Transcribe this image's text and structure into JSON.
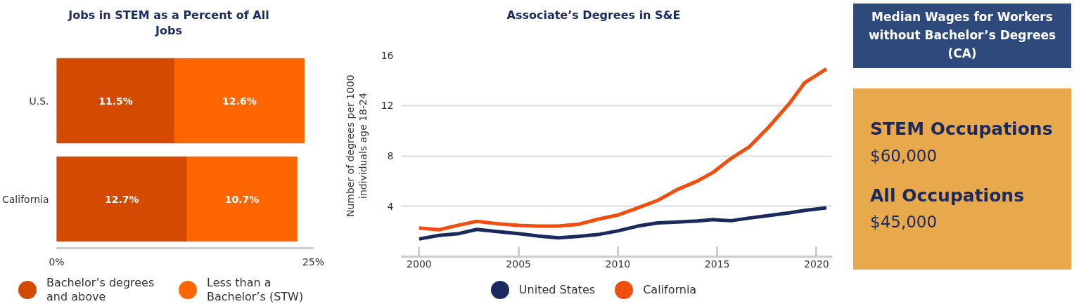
{
  "chart_data": [
    {
      "type": "bar",
      "orientation": "horizontal",
      "stacked": true,
      "title": "Jobs in STEM as a Percent of All Jobs",
      "categories": [
        "U.S.",
        "California"
      ],
      "series": [
        {
          "name": "Bachelor’s degrees and above",
          "color": "#d44a00",
          "values": [
            11.5,
            12.7
          ],
          "value_labels": [
            "11.5%",
            "12.7%"
          ]
        },
        {
          "name": "Less than a Bachelor’s (STW)",
          "color": "#ff6600",
          "values": [
            12.6,
            10.7
          ],
          "value_labels": [
            "12.6%",
            "10.7%"
          ]
        }
      ],
      "xlim": [
        0,
        25
      ],
      "xticks": [
        {
          "value": 0,
          "label": "0%"
        },
        {
          "value": 25,
          "label": "25%"
        }
      ],
      "grid": false,
      "legend": "bottom"
    },
    {
      "type": "line",
      "title": "Associate’s Degrees in S&E",
      "ylabel": "Number of degrees per 1000 individuals age 18-24",
      "series": [
        {
          "name": "United States",
          "color": "#1b2a5e",
          "x": [
            2000,
            2001,
            2002,
            2002.9,
            2004,
            2005,
            2006,
            2007,
            2008,
            2009,
            2010,
            2011,
            2012,
            2013,
            2014,
            2014.8,
            2015.7,
            2016.6,
            2017.6,
            2018.6,
            2019.4,
            2020.5
          ],
          "values": [
            1.4,
            1.69,
            1.83,
            2.16,
            1.98,
            1.83,
            1.63,
            1.49,
            1.6,
            1.75,
            2.04,
            2.42,
            2.68,
            2.74,
            2.83,
            2.94,
            2.85,
            3.06,
            3.26,
            3.47,
            3.67,
            3.87
          ]
        },
        {
          "name": "California",
          "color": "#f04e0f",
          "x": [
            2000,
            2001,
            2002,
            2002.9,
            2004,
            2005,
            2006,
            2007,
            2008,
            2009,
            2010,
            2011,
            2012,
            2013,
            2014,
            2014.8,
            2015.7,
            2016.6,
            2017.6,
            2018.6,
            2019.4,
            2020.5
          ],
          "values": [
            2.27,
            2.13,
            2.5,
            2.8,
            2.6,
            2.48,
            2.42,
            2.42,
            2.56,
            2.97,
            3.3,
            3.87,
            4.46,
            5.33,
            6.0,
            6.7,
            7.8,
            8.7,
            10.3,
            12.1,
            13.8,
            14.9
          ]
        }
      ],
      "xlim": [
        1999.1,
        2020.8
      ],
      "xticks": [
        2000,
        2005,
        2010,
        2015,
        2020
      ],
      "ylim": [
        0,
        16
      ],
      "yticks": [
        4,
        8,
        12,
        16
      ],
      "grid": "y",
      "legend": "bottom",
      "marker": "none",
      "line_style": "solid"
    },
    {
      "type": "other",
      "title": "Median Wages for Workers without Bachelor’s Degrees (CA)",
      "annotations": [
        "STEM Occupations",
        "$60,000",
        "All Occupations",
        "$45,000"
      ]
    }
  ]
}
